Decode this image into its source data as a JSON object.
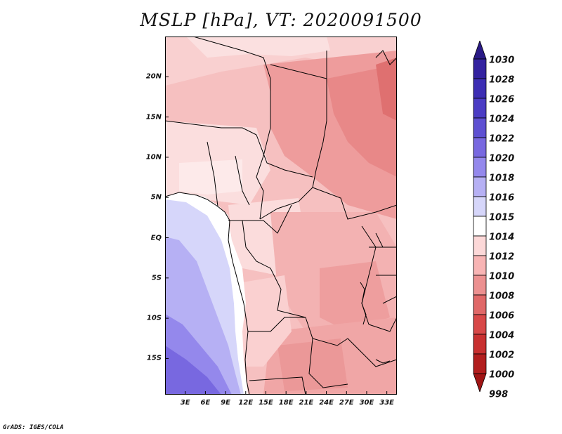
{
  "title": "MSLP [hPa], VT: 2020091500",
  "credit": "GrADS: IGES/COLA",
  "map": {
    "lon_range": [
      0,
      34.5
    ],
    "lat_range": [
      -19.5,
      25
    ],
    "x_ticks": [
      "3E",
      "6E",
      "9E",
      "12E",
      "15E",
      "18E",
      "21E",
      "24E",
      "27E",
      "30E",
      "33E"
    ],
    "y_ticks": [
      "20N",
      "15N",
      "10N",
      "5N",
      "EQ",
      "5S",
      "10S",
      "15S"
    ]
  },
  "colorbar": {
    "levels": [
      "1030",
      "1028",
      "1026",
      "1024",
      "1022",
      "1020",
      "1018",
      "1016",
      "1015",
      "1014",
      "1012",
      "1010",
      "1008",
      "1006",
      "1004",
      "1002",
      "1000",
      "998"
    ],
    "colors": [
      "#2a1a86",
      "#3322a0",
      "#3d2eb4",
      "#4b3cc4",
      "#5e50d2",
      "#7868e0",
      "#9488ec",
      "#b6b0f4",
      "#d6d6fa",
      "#ffffff",
      "#fcd8d8",
      "#f8b4b4",
      "#ec9090",
      "#e06868",
      "#d84848",
      "#c83030",
      "#b21e1e",
      "#a01414"
    ]
  }
}
